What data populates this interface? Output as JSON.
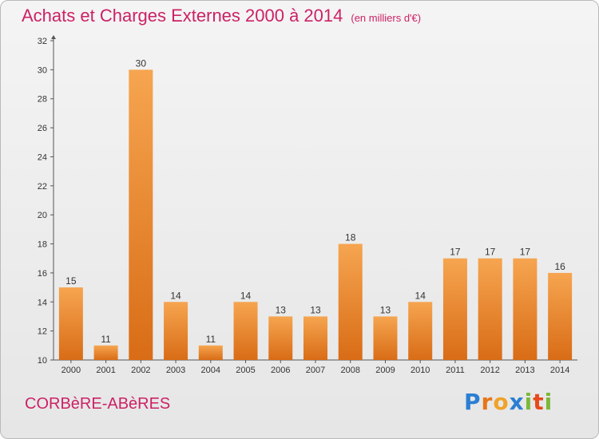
{
  "header": {
    "title": "Achats et Charges Externes 2000 à 2014",
    "unit": "(en milliers d'€)"
  },
  "footer": {
    "commune": "CORBèRE-ABèRES",
    "logo": "Proxiti"
  },
  "colors": {
    "bar_top": "#f6a550",
    "bar_bottom": "#d96c16",
    "title": "#cc2266",
    "axis": "#555555"
  },
  "chart_data": {
    "type": "bar",
    "title": "Achats et Charges Externes 2000 à 2014",
    "subtitle": "(en milliers d'€)",
    "xlabel": "",
    "ylabel": "",
    "categories": [
      "2000",
      "2001",
      "2002",
      "2003",
      "2004",
      "2005",
      "2006",
      "2007",
      "2008",
      "2009",
      "2010",
      "2011",
      "2012",
      "2013",
      "2014"
    ],
    "values": [
      15,
      11,
      30,
      14,
      11,
      14,
      13,
      13,
      18,
      13,
      14,
      17,
      17,
      17,
      16
    ],
    "ylim": [
      10,
      32
    ],
    "yticks": [
      10,
      12,
      14,
      16,
      18,
      20,
      22,
      24,
      26,
      28,
      30,
      32
    ],
    "grid": false,
    "legend": "none"
  }
}
